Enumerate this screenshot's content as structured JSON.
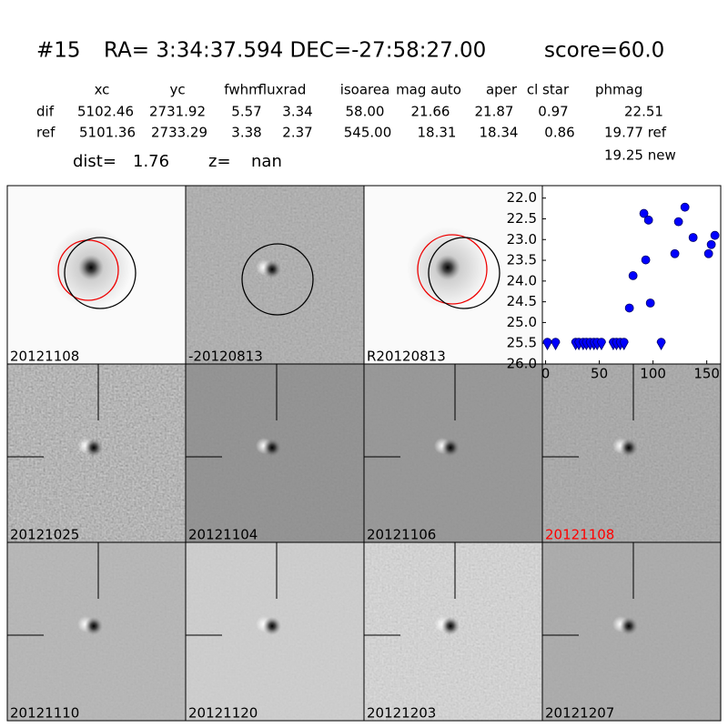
{
  "header": {
    "id": "#15",
    "coords": "RA= 3:34:37.594 DEC=-27:58:27.00",
    "score": "score=60.0"
  },
  "table": {
    "headers": [
      "xc",
      "yc",
      "fwhm",
      "fluxrad",
      "isoarea",
      "mag auto",
      "aper",
      "cl star",
      "phmag"
    ],
    "rows": [
      {
        "label": "dif",
        "cells": [
          "5102.46",
          "2731.92",
          "5.57",
          "3.34",
          "58.00",
          "21.66",
          "21.87",
          "0.97",
          "22.51"
        ]
      },
      {
        "label": "ref",
        "cells": [
          "5101.36",
          "2733.29",
          "3.38",
          "2.37",
          "545.00",
          "18.31",
          "18.34",
          "0.86",
          "19.77 ref"
        ]
      }
    ],
    "note": "19.25 new"
  },
  "dist": {
    "label": "dist=",
    "value": "1.76"
  },
  "z": {
    "label": "z=",
    "value": "nan"
  },
  "panels": [
    {
      "label": "20121108"
    },
    {
      "label": "-20120813"
    },
    {
      "label": "R20120813"
    },
    {
      "label": "20121025"
    },
    {
      "label": "20121104"
    },
    {
      "label": "20121106"
    },
    {
      "label": "20121108",
      "color": "#ff0000"
    },
    {
      "label": "20121110"
    },
    {
      "label": "20121120"
    },
    {
      "label": "20121203"
    },
    {
      "label": "20121207"
    }
  ],
  "chart_data": {
    "type": "scatter",
    "xlim": [
      -3,
      163
    ],
    "xticks": [
      0,
      50,
      100,
      150
    ],
    "ylim": [
      26.0,
      21.7
    ],
    "yticks": [
      {
        "value": 22.0,
        "label": "22.0"
      },
      {
        "value": 22.5,
        "label": "22.5"
      },
      {
        "value": 23.0,
        "label": "23.0"
      },
      {
        "value": 23.5,
        "label": "23.5"
      },
      {
        "value": 24.0,
        "label": "24.0"
      },
      {
        "value": 24.5,
        "label": "24.5"
      },
      {
        "value": 25.0,
        "label": "25.0"
      },
      {
        "value": 25.5,
        "label": "25.5"
      },
      {
        "value": 26.0,
        "label": "26.0"
      }
    ],
    "series": [
      {
        "color": "#0000ff",
        "marker": "limit",
        "x": [
          1.7,
          9.3,
          28,
          31,
          35,
          38,
          41.5,
          45,
          48,
          52,
          63,
          66,
          69.5,
          73,
          107.6
        ],
        "values": [
          25.5,
          25.5,
          25.5,
          25.5,
          25.5,
          25.5,
          25.5,
          25.5,
          25.5,
          25.5,
          25.5,
          25.5,
          25.5,
          25.5,
          25.5
        ]
      },
      {
        "color": "#0000ff",
        "marker": "circle",
        "x": [
          78,
          81.4,
          91.5,
          93.2,
          95.8,
          97.5,
          120.3,
          123.7,
          129.7,
          137.3,
          151.7,
          154.2,
          157.6
        ],
        "values": [
          24.65,
          23.87,
          22.37,
          23.49,
          22.53,
          24.53,
          23.34,
          22.57,
          22.22,
          22.95,
          23.34,
          23.12,
          22.9
        ]
      }
    ]
  }
}
